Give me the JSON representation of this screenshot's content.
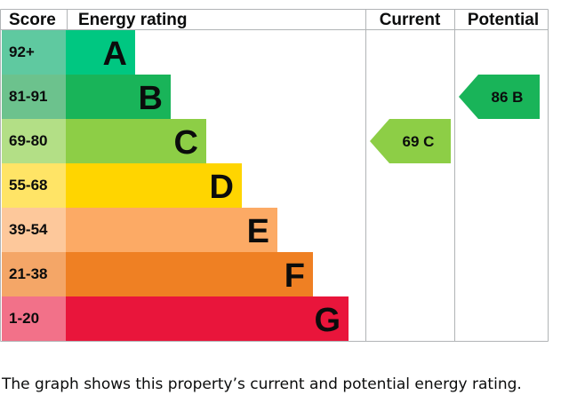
{
  "chart_data": {
    "type": "bar",
    "headers": {
      "score": "Score",
      "rating": "Energy rating",
      "current": "Current",
      "potential": "Potential"
    },
    "bands": [
      {
        "letter": "A",
        "range": "92+",
        "color": "#00c781",
        "score_color": "#5fc9a0"
      },
      {
        "letter": "B",
        "range": "81-91",
        "color": "#19b459",
        "score_color": "#6cc28d"
      },
      {
        "letter": "C",
        "range": "69-80",
        "color": "#8dce46",
        "score_color": "#b3df86"
      },
      {
        "letter": "D",
        "range": "55-68",
        "color": "#ffd500",
        "score_color": "#ffe466"
      },
      {
        "letter": "E",
        "range": "39-54",
        "color": "#fcaa65",
        "score_color": "#fdc89b"
      },
      {
        "letter": "F",
        "range": "21-38",
        "color": "#ef8023",
        "score_color": "#f4a667"
      },
      {
        "letter": "G",
        "range": "1-20",
        "color": "#e9153b",
        "score_color": "#f27189"
      }
    ],
    "current": {
      "value": 69,
      "band": "C",
      "label": "69  C",
      "color": "#8dce46"
    },
    "potential": {
      "value": 86,
      "band": "B",
      "label": "86  B",
      "color": "#19b459"
    }
  },
  "caption": "The graph shows this property’s current and potential energy rating."
}
